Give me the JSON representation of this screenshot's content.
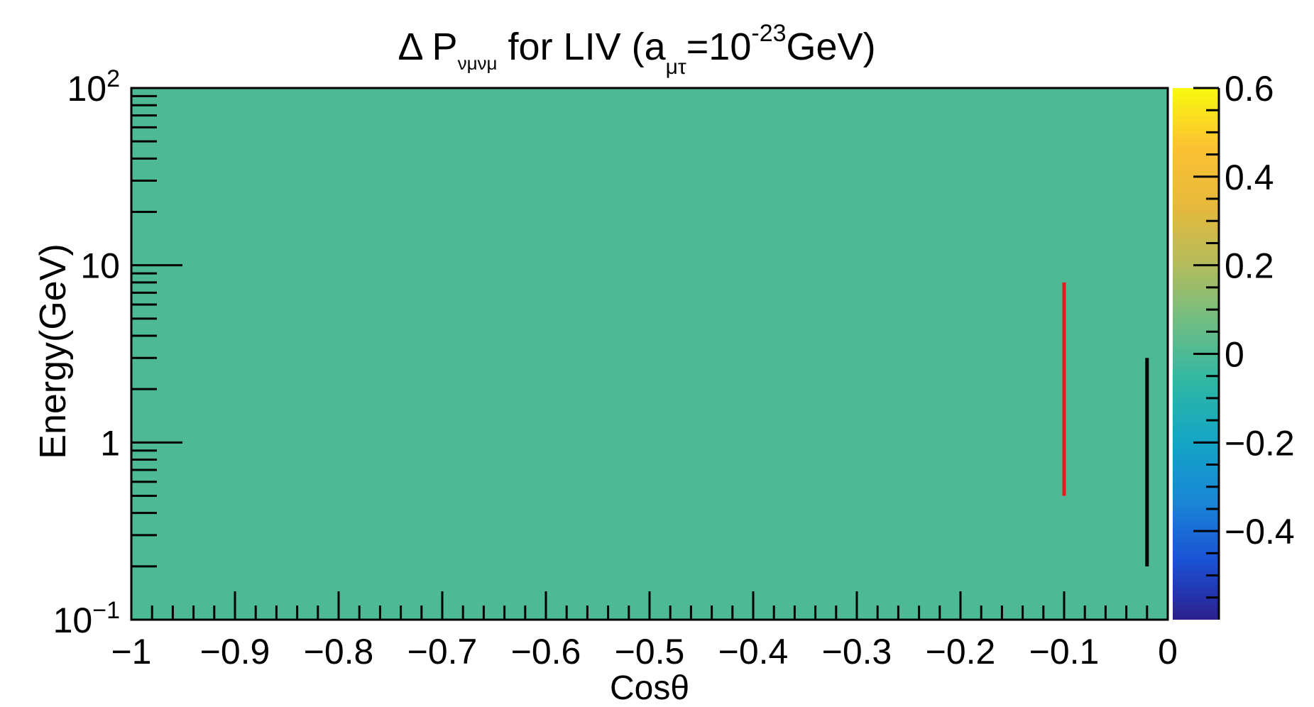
{
  "chart_data": {
    "type": "heatmap",
    "title": {
      "prefix": "Δ P",
      "subscript": "νμνμ",
      "middle": " for LIV (a",
      "param_subscript": "μτ",
      "equals": "=10",
      "exponent": "-23",
      "suffix": "GeV)"
    },
    "xlabel": "Cosθ",
    "ylabel": "Energy(GeV)",
    "xlim": [
      -1,
      0
    ],
    "ylim": [
      0.1,
      100
    ],
    "y_scale": "log",
    "z_range": [
      -0.6,
      0.6
    ],
    "x_ticks": [
      {
        "value": -1,
        "label": "−1"
      },
      {
        "value": -0.9,
        "label": "−0.9"
      },
      {
        "value": -0.8,
        "label": "−0.8"
      },
      {
        "value": -0.7,
        "label": "−0.7"
      },
      {
        "value": -0.6,
        "label": "−0.6"
      },
      {
        "value": -0.5,
        "label": "−0.5"
      },
      {
        "value": -0.4,
        "label": "−0.4"
      },
      {
        "value": -0.3,
        "label": "−0.3"
      },
      {
        "value": -0.2,
        "label": "−0.2"
      },
      {
        "value": -0.1,
        "label": "−0.1"
      },
      {
        "value": 0,
        "label": "0"
      }
    ],
    "y_ticks": [
      {
        "value": 0.1,
        "base": "10",
        "exp": "−1"
      },
      {
        "value": 1,
        "base": "1",
        "exp": ""
      },
      {
        "value": 10,
        "base": "10",
        "exp": ""
      },
      {
        "value": 100,
        "base": "10",
        "exp": "2"
      }
    ],
    "colorbar": {
      "ticks": [
        {
          "value": 0.6,
          "label": "0.6"
        },
        {
          "value": 0.4,
          "label": "0.4"
        },
        {
          "value": 0.2,
          "label": "0.2"
        },
        {
          "value": 0,
          "label": "0"
        },
        {
          "value": -0.2,
          "label": "−0.2"
        },
        {
          "value": -0.4,
          "label": "−0.4"
        }
      ],
      "colors": [
        "#2c1f8e",
        "#1a52d6",
        "#1a86d6",
        "#13a5c6",
        "#2eb7a5",
        "#6dbd85",
        "#b4bc5c",
        "#e6b93b",
        "#fcc132",
        "#f8fa0e"
      ]
    },
    "grid": false,
    "annotations": [
      {
        "name": "red-energy-line",
        "color": "#e41a1c",
        "x": -0.1,
        "y_from": 0.5,
        "y_to": 8.0
      },
      {
        "name": "black-energy-line",
        "color": "#000000",
        "x": -0.02,
        "y_from": 0.2,
        "y_to": 3.0
      }
    ]
  }
}
